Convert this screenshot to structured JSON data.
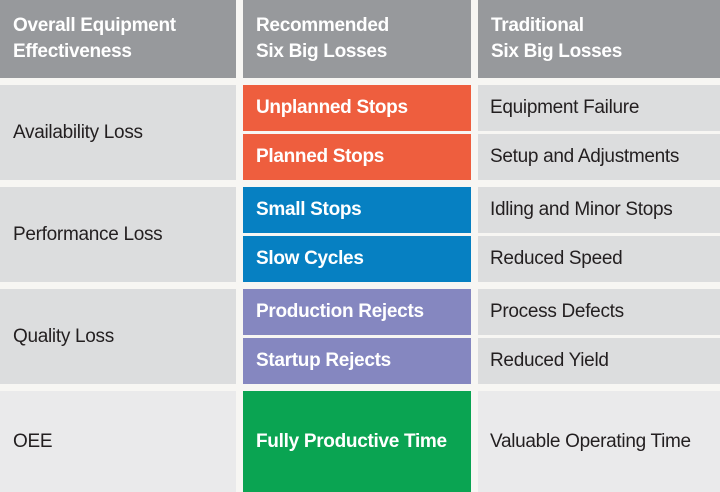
{
  "table": {
    "columns": [
      {
        "line1": "Overall Equipment",
        "line2": "Effectiveness"
      },
      {
        "line1": "Recommended",
        "line2": "Six Big Losses"
      },
      {
        "line1": "Traditional",
        "line2": "Six Big Losses"
      }
    ],
    "groups": [
      {
        "category": "Availability Loss",
        "color": "#EE5E3E",
        "rows": [
          {
            "recommended": "Unplanned Stops",
            "traditional": "Equipment Failure"
          },
          {
            "recommended": "Planned Stops",
            "traditional": "Setup and Adjustments"
          }
        ]
      },
      {
        "category": "Performance Loss",
        "color": "#0680C2",
        "rows": [
          {
            "recommended": "Small Stops",
            "traditional": "Idling and Minor Stops"
          },
          {
            "recommended": "Slow Cycles",
            "traditional": "Reduced Speed"
          }
        ]
      },
      {
        "category": "Quality Loss",
        "color": "#8587C0",
        "rows": [
          {
            "recommended": "Production Rejects",
            "traditional": "Process Defects"
          },
          {
            "recommended": "Startup Rejects",
            "traditional": "Reduced Yield"
          }
        ]
      },
      {
        "category": "OEE",
        "color": "#0AA452",
        "rows": [
          {
            "recommended": "Fully Productive Time",
            "traditional": "Valuable Operating Time"
          }
        ]
      }
    ],
    "colors": {
      "header_bg": "#97999C",
      "header_text": "#FFFFFF",
      "row_bg": "#DCDDDE",
      "oee_row_bg": "#EAEAEB",
      "text": "#231F20",
      "gutter": "#F7F6F3",
      "orange": "#EE5E3E",
      "blue": "#0680C2",
      "purple": "#8587C0",
      "green": "#0AA452"
    }
  }
}
